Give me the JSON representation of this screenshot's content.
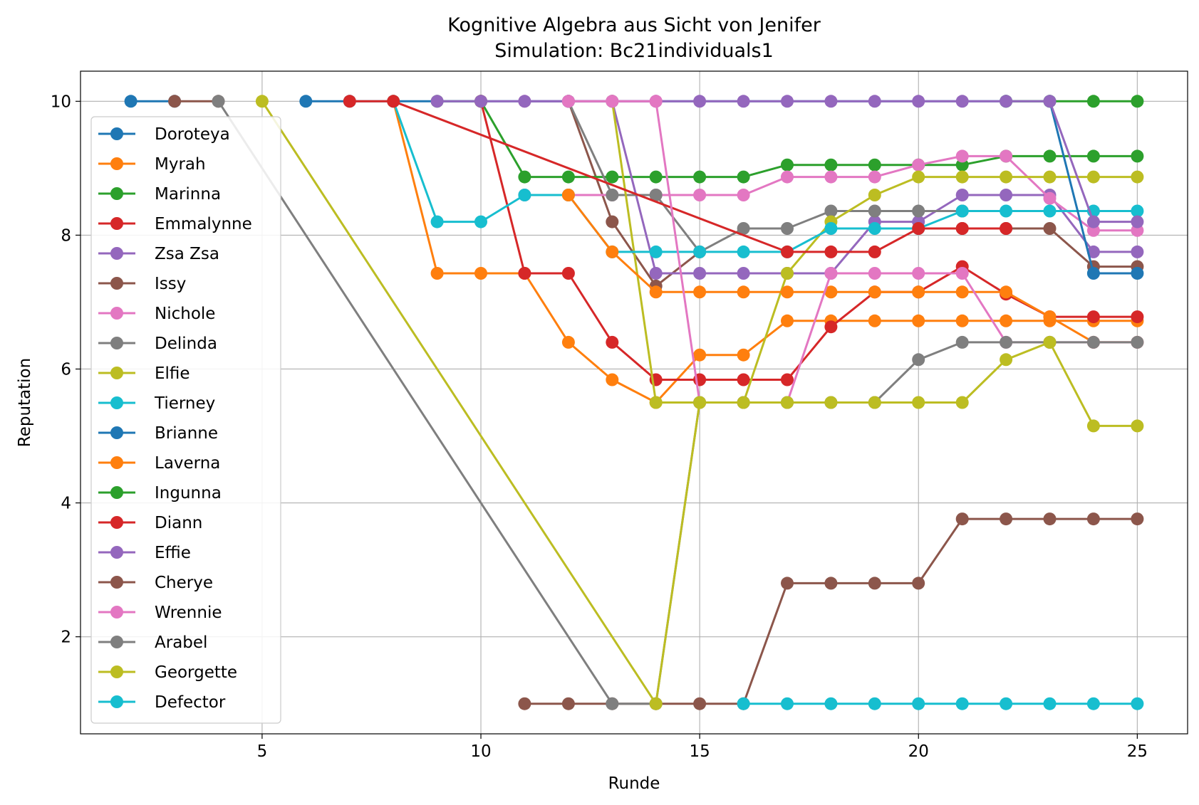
{
  "chart_data": {
    "type": "line",
    "title": "Kognitive Algebra aus Sicht von Jenifer",
    "subtitle": "Simulation: Bc21individuals1",
    "xlabel": "Runde",
    "ylabel": "Reputation",
    "xlim": [
      0.85,
      26.15
    ],
    "ylim": [
      0.55,
      10.45
    ],
    "xticks": [
      5,
      10,
      15,
      20,
      25
    ],
    "yticks": [
      2,
      4,
      6,
      8,
      10
    ],
    "grid": true,
    "legend_position": "left",
    "series": [
      {
        "name": "Doroteya",
        "color": "#1f77b4",
        "points": [
          [
            2,
            10
          ],
          [
            3,
            10
          ]
        ]
      },
      {
        "name": "Myrah",
        "color": "#ff7f0e",
        "points": [
          [
            8,
            10
          ],
          [
            9,
            7.43
          ],
          [
            10,
            7.43
          ],
          [
            11,
            7.43
          ],
          [
            12,
            6.4
          ],
          [
            13,
            5.84
          ],
          [
            14,
            5.5
          ],
          [
            15,
            6.21
          ],
          [
            16,
            6.21
          ],
          [
            17,
            6.72
          ],
          [
            18,
            6.72
          ],
          [
            19,
            6.72
          ],
          [
            20,
            6.72
          ],
          [
            21,
            6.72
          ],
          [
            22,
            6.72
          ],
          [
            23,
            6.72
          ],
          [
            24,
            6.72
          ],
          [
            25,
            6.72
          ]
        ]
      },
      {
        "name": "Marinna",
        "color": "#2ca02c",
        "points": [
          [
            10,
            10
          ],
          [
            11,
            8.87
          ],
          [
            12,
            8.87
          ],
          [
            13,
            8.87
          ],
          [
            14,
            8.87
          ],
          [
            15,
            8.87
          ],
          [
            16,
            8.87
          ],
          [
            17,
            9.05
          ],
          [
            18,
            9.05
          ],
          [
            19,
            9.05
          ],
          [
            20,
            9.05
          ],
          [
            21,
            9.05
          ],
          [
            22,
            9.18
          ],
          [
            23,
            9.18
          ],
          [
            24,
            9.18
          ],
          [
            25,
            9.18
          ]
        ]
      },
      {
        "name": "Emmalynne",
        "color": "#d62728",
        "points": [
          [
            10,
            10
          ],
          [
            11,
            7.43
          ],
          [
            12,
            7.43
          ],
          [
            13,
            6.4
          ],
          [
            14,
            5.84
          ],
          [
            15,
            5.84
          ],
          [
            16,
            5.84
          ],
          [
            17,
            5.84
          ],
          [
            18,
            6.63
          ],
          [
            19,
            7.15
          ],
          [
            20,
            7.15
          ],
          [
            21,
            7.53
          ],
          [
            22,
            7.12
          ],
          [
            23,
            6.78
          ],
          [
            24,
            6.78
          ],
          [
            25,
            6.78
          ]
        ]
      },
      {
        "name": "Zsa Zsa",
        "color": "#9467bd",
        "points": [
          [
            12,
            10
          ],
          [
            13,
            10
          ],
          [
            14,
            7.43
          ],
          [
            15,
            7.43
          ],
          [
            16,
            7.43
          ],
          [
            17,
            7.43
          ],
          [
            18,
            7.43
          ],
          [
            19,
            8.2
          ],
          [
            20,
            8.2
          ],
          [
            21,
            8.6
          ],
          [
            22,
            8.6
          ],
          [
            23,
            8.6
          ],
          [
            24,
            7.75
          ],
          [
            25,
            7.75
          ]
        ]
      },
      {
        "name": "Issy",
        "color": "#8c564b",
        "points": [
          [
            3,
            10
          ],
          [
            4,
            10
          ]
        ]
      },
      {
        "name": "Nichole",
        "color": "#e377c2",
        "points": [
          [
            11,
            8.6
          ],
          [
            12,
            8.6
          ],
          [
            13,
            8.6
          ],
          [
            14,
            8.6
          ],
          [
            15,
            8.6
          ],
          [
            16,
            8.6
          ],
          [
            17,
            8.87
          ],
          [
            18,
            8.87
          ],
          [
            19,
            8.87
          ],
          [
            20,
            9.05
          ],
          [
            21,
            9.18
          ],
          [
            22,
            9.18
          ],
          [
            23,
            8.55
          ],
          [
            24,
            8.07
          ],
          [
            25,
            8.07
          ]
        ]
      },
      {
        "name": "Delinda",
        "color": "#7f7f7f",
        "points": [
          [
            12,
            10
          ],
          [
            13,
            8.6
          ],
          [
            14,
            8.6
          ],
          [
            15,
            7.75
          ],
          [
            16,
            8.1
          ],
          [
            17,
            8.1
          ],
          [
            18,
            8.36
          ],
          [
            19,
            8.36
          ],
          [
            20,
            8.36
          ],
          [
            21,
            8.36
          ]
        ]
      },
      {
        "name": "Elfie",
        "color": "#bcbd22",
        "points": [
          [
            13,
            10
          ],
          [
            14,
            5.5
          ],
          [
            15,
            5.5
          ],
          [
            16,
            5.5
          ],
          [
            17,
            7.43
          ],
          [
            18,
            8.2
          ],
          [
            19,
            8.6
          ],
          [
            20,
            8.87
          ],
          [
            21,
            8.87
          ],
          [
            22,
            8.87
          ],
          [
            23,
            8.87
          ],
          [
            24,
            8.87
          ],
          [
            25,
            8.87
          ]
        ]
      },
      {
        "name": "Tierney",
        "color": "#17becf",
        "points": [
          [
            8,
            10
          ],
          [
            9,
            8.2
          ],
          [
            10,
            8.2
          ],
          [
            11,
            8.6
          ],
          [
            12,
            8.6
          ],
          [
            13,
            7.75
          ],
          [
            14,
            7.75
          ],
          [
            15,
            7.75
          ],
          [
            16,
            7.75
          ],
          [
            17,
            7.75
          ],
          [
            18,
            8.1
          ],
          [
            19,
            8.1
          ],
          [
            20,
            8.1
          ],
          [
            21,
            8.36
          ],
          [
            22,
            8.36
          ],
          [
            23,
            8.36
          ],
          [
            24,
            8.36
          ],
          [
            25,
            8.36
          ]
        ]
      },
      {
        "name": "Brianne",
        "color": "#1f77b4",
        "points": [
          [
            6,
            10
          ],
          [
            7,
            10
          ],
          [
            22,
            10
          ],
          [
            23,
            10
          ],
          [
            24,
            7.43
          ],
          [
            25,
            7.43
          ]
        ]
      },
      {
        "name": "Laverna",
        "color": "#ff7f0e",
        "points": [
          [
            12,
            8.6
          ],
          [
            13,
            7.75
          ],
          [
            14,
            7.15
          ],
          [
            15,
            7.15
          ],
          [
            16,
            7.15
          ],
          [
            17,
            7.15
          ],
          [
            18,
            7.15
          ],
          [
            19,
            7.15
          ],
          [
            20,
            7.15
          ],
          [
            21,
            7.15
          ],
          [
            22,
            7.15
          ],
          [
            23,
            6.78
          ],
          [
            24,
            6.4
          ],
          [
            25,
            6.4
          ]
        ]
      },
      {
        "name": "Ingunna",
        "color": "#2ca02c",
        "points": [
          [
            22,
            10
          ],
          [
            23,
            10
          ],
          [
            24,
            10
          ],
          [
            25,
            10
          ]
        ]
      },
      {
        "name": "Diann",
        "color": "#d62728",
        "points": [
          [
            7,
            10
          ],
          [
            8,
            10
          ],
          [
            17,
            7.75
          ],
          [
            18,
            7.75
          ],
          [
            19,
            7.75
          ],
          [
            20,
            8.1
          ],
          [
            21,
            8.1
          ],
          [
            22,
            8.1
          ]
        ]
      },
      {
        "name": "Effie",
        "color": "#9467bd",
        "points": [
          [
            9,
            10
          ],
          [
            10,
            10
          ],
          [
            11,
            10
          ],
          [
            12,
            10
          ],
          [
            13,
            10
          ],
          [
            14,
            10
          ],
          [
            15,
            10
          ],
          [
            16,
            10
          ],
          [
            17,
            10
          ],
          [
            18,
            10
          ],
          [
            19,
            10
          ],
          [
            20,
            10
          ],
          [
            21,
            10
          ],
          [
            22,
            10
          ],
          [
            23,
            10
          ],
          [
            24,
            8.2
          ],
          [
            25,
            8.2
          ]
        ]
      },
      {
        "name": "Cherye",
        "color": "#8c564b",
        "points": [
          [
            11,
            1
          ],
          [
            12,
            1
          ],
          [
            13,
            1
          ],
          [
            14,
            1
          ],
          [
            15,
            1
          ],
          [
            16,
            1
          ],
          [
            17,
            2.8
          ],
          [
            18,
            2.8
          ],
          [
            19,
            2.8
          ],
          [
            20,
            2.8
          ],
          [
            21,
            3.76
          ],
          [
            22,
            3.76
          ],
          [
            23,
            3.76
          ],
          [
            24,
            3.76
          ],
          [
            25,
            3.76
          ]
        ]
      },
      {
        "name": "Wrennie",
        "color": "#e377c2",
        "points": [
          [
            12,
            10
          ],
          [
            13,
            10
          ],
          [
            14,
            10
          ],
          [
            15,
            5.5
          ],
          [
            16,
            5.5
          ],
          [
            17,
            5.5
          ],
          [
            18,
            7.43
          ],
          [
            19,
            7.43
          ],
          [
            20,
            7.43
          ],
          [
            21,
            7.43
          ],
          [
            22,
            6.4
          ],
          [
            23,
            6.4
          ],
          [
            24,
            6.4
          ],
          [
            25,
            6.4
          ]
        ]
      },
      {
        "name": "Arabel",
        "color": "#7f7f7f",
        "points": [
          [
            4,
            10
          ],
          [
            13,
            1
          ],
          [
            14,
            1
          ],
          [
            15,
            5.5
          ],
          [
            16,
            5.5
          ],
          [
            17,
            5.5
          ],
          [
            18,
            5.5
          ],
          [
            19,
            5.5
          ],
          [
            20,
            6.14
          ],
          [
            21,
            6.4
          ],
          [
            22,
            6.4
          ],
          [
            23,
            6.4
          ],
          [
            24,
            6.4
          ],
          [
            25,
            6.4
          ]
        ]
      },
      {
        "name": "Georgette",
        "color": "#bcbd22",
        "points": [
          [
            5,
            10
          ],
          [
            14,
            1
          ],
          [
            15,
            5.5
          ],
          [
            16,
            5.5
          ],
          [
            17,
            5.5
          ],
          [
            18,
            5.5
          ],
          [
            19,
            5.5
          ],
          [
            20,
            5.5
          ],
          [
            21,
            5.5
          ],
          [
            22,
            6.14
          ],
          [
            23,
            6.4
          ],
          [
            24,
            5.15
          ],
          [
            25,
            5.15
          ]
        ]
      },
      {
        "name": "Defector",
        "color": "#17becf",
        "points": [
          [
            16,
            1
          ],
          [
            17,
            1
          ],
          [
            18,
            1
          ],
          [
            19,
            1
          ],
          [
            20,
            1
          ],
          [
            21,
            1
          ],
          [
            22,
            1
          ],
          [
            23,
            1
          ],
          [
            24,
            1
          ],
          [
            25,
            1
          ]
        ]
      }
    ],
    "extra_segments": [
      {
        "color": "#8c564b",
        "points": [
          [
            12,
            10
          ],
          [
            13,
            8.2
          ],
          [
            14,
            7.24
          ],
          [
            15,
            7.75
          ]
        ]
      },
      {
        "color": "#8c564b",
        "points": [
          [
            20,
            8.1
          ],
          [
            21,
            8.1
          ],
          [
            22,
            8.1
          ],
          [
            23,
            8.1
          ],
          [
            24,
            7.53
          ],
          [
            25,
            7.53
          ]
        ]
      },
      {
        "color": "#2ca02c",
        "points": [
          [
            9,
            10
          ],
          [
            10,
            10
          ]
        ]
      },
      {
        "color": "#e377c2",
        "points": [
          [
            11,
            10
          ],
          [
            12,
            10
          ],
          [
            13,
            10
          ],
          [
            14,
            10
          ]
        ]
      }
    ]
  }
}
